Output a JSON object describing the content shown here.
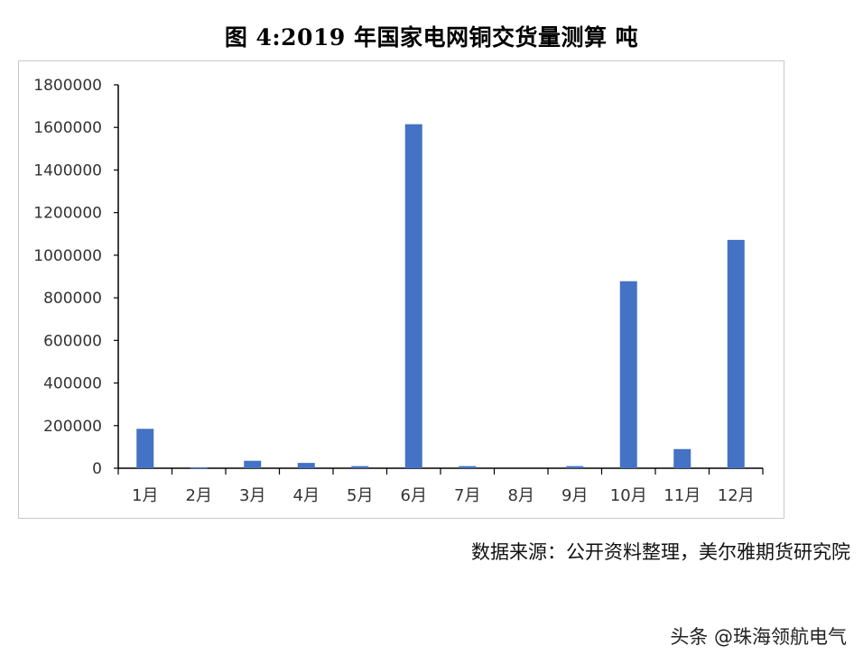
{
  "chart_data": {
    "type": "bar",
    "title": "图 4:2019 年国家电网铜交货量测算 吨",
    "categories": [
      "1月",
      "2月",
      "3月",
      "4月",
      "5月",
      "6月",
      "7月",
      "8月",
      "9月",
      "10月",
      "11月",
      "12月"
    ],
    "values": [
      185000,
      3000,
      35000,
      25000,
      10000,
      1615000,
      10000,
      0,
      10000,
      878000,
      90000,
      1072000
    ],
    "yticks": [
      0,
      200000,
      400000,
      600000,
      800000,
      1000000,
      1200000,
      1400000,
      1600000,
      1800000
    ],
    "ylim": [
      0,
      1800000
    ],
    "grid": false,
    "bar_color": "#4472C4"
  },
  "source_note": "数据来源：公开资料整理，美尔雅期货研究院",
  "watermark": "头条 @珠海领航电气"
}
